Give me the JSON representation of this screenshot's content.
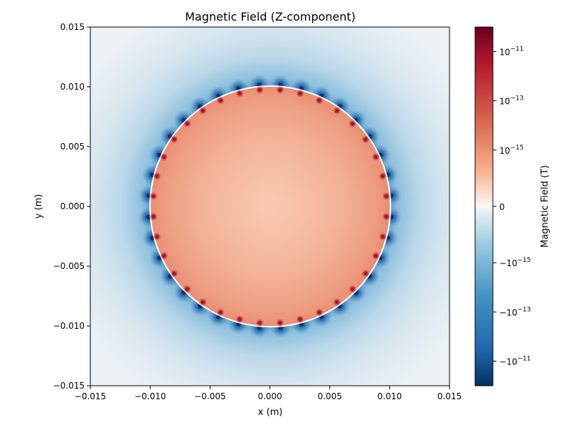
{
  "chart_data": {
    "type": "heatmap",
    "title": "Magnetic Field (Z-component)",
    "xlabel": "x (m)",
    "ylabel": "y (m)",
    "xlim": [
      -0.015,
      0.015
    ],
    "ylim": [
      -0.015,
      0.015
    ],
    "x_ticks": [
      -0.015,
      -0.01,
      -0.005,
      0.0,
      0.005,
      0.01,
      0.015
    ],
    "y_ticks": [
      -0.015,
      -0.01,
      -0.005,
      0.0,
      0.005,
      0.01,
      0.015
    ],
    "x_tick_labels": [
      "−0.015",
      "−0.010",
      "−0.005",
      "0.000",
      "0.005",
      "0.010",
      "0.015"
    ],
    "y_tick_labels": [
      "−0.015",
      "−0.010",
      "−0.005",
      "0.000",
      "0.005",
      "0.010",
      "0.015"
    ],
    "grid": false,
    "field": {
      "description_source": "symmetric-log colormap of Bz",
      "disk_radius": 0.01,
      "coil_points": 36,
      "inside_sign": "positive",
      "outside_sign": "negative"
    },
    "colorbar": {
      "label": "Magnetic Field (T)",
      "scale": "symlog",
      "colormap": "RdBu_r",
      "range": [
        -1e-10,
        1e-10
      ],
      "ticks": [
        {
          "value": 1e-11,
          "base": "10",
          "exp": "−11",
          "sign": ""
        },
        {
          "value": 1e-13,
          "base": "10",
          "exp": "−13",
          "sign": ""
        },
        {
          "value": 1e-15,
          "base": "10",
          "exp": "−15",
          "sign": ""
        },
        {
          "value": 0,
          "base": "0",
          "exp": "",
          "sign": ""
        },
        {
          "value": -1e-15,
          "base": "10",
          "exp": "−15",
          "sign": "−"
        },
        {
          "value": -1e-13,
          "base": "10",
          "exp": "−13",
          "sign": "−"
        },
        {
          "value": -1e-11,
          "base": "10",
          "exp": "−11",
          "sign": "−"
        }
      ]
    },
    "colors": {
      "inside_center": "#f9c9b0",
      "inside_edge": "#ea9277",
      "outside_far": "#e9f0f5",
      "outside_near": "#5fa3cf",
      "pole_positive": "#b2182b",
      "pole_negative": "#2166ac"
    }
  }
}
